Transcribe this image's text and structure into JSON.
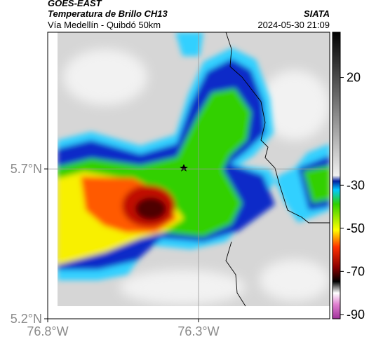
{
  "header": {
    "satellite": "GOES-EAST",
    "product": "Temperatura de Brillo CH13",
    "route": "Vía Medellín - Quibdó 50km",
    "source": "SIATA",
    "timestamp": "2024-05-30 21:09"
  },
  "map": {
    "lon_range": [
      -76.8,
      -75.865
    ],
    "lat_range": [
      5.2,
      6.156
    ],
    "lat_ticks": [
      {
        "value": 5.7,
        "label": "5.7°N"
      },
      {
        "value": 5.2,
        "label": "5.2°N"
      }
    ],
    "lon_ticks": [
      {
        "value": -76.8,
        "label": "76.8°W"
      },
      {
        "value": -76.3,
        "label": "76.3°W"
      }
    ]
  },
  "colorbar": {
    "range": [
      -92,
      41
    ],
    "ticks": [
      20,
      -30,
      -50,
      -70,
      -90
    ]
  }
}
